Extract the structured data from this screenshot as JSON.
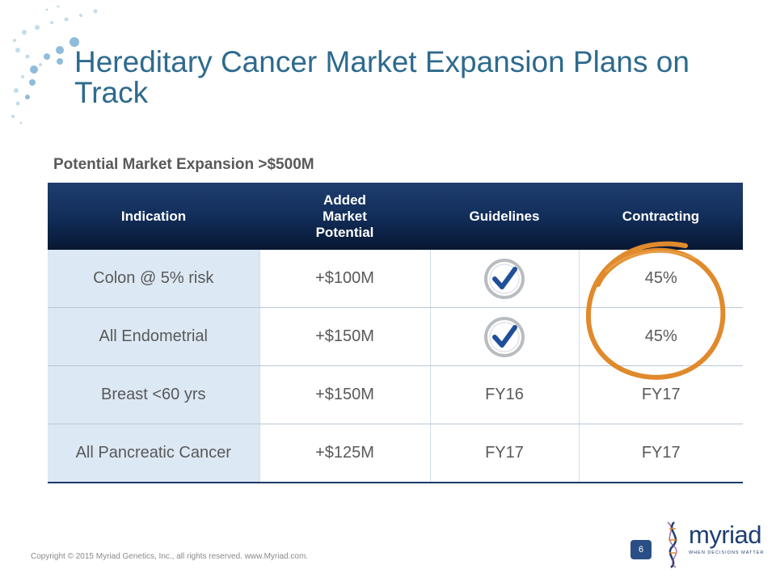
{
  "slide": {
    "title": "Hereditary Cancer Market Expansion Plans on Track",
    "subtitle": "Potential Market Expansion >$500M",
    "page_number": "6",
    "copyright": "Copyright © 2015 Myriad Genetics, Inc., all rights reserved.  www.Myriad.com.",
    "logo": {
      "word": "myriad",
      "tagline": "WHEN DECISIONS MATTER"
    }
  },
  "table": {
    "headers": [
      "Indication",
      "Added Market Potential",
      "Guidelines",
      "Contracting"
    ],
    "rows": [
      {
        "indication": "Colon @ 5% risk",
        "potential": "+$100M",
        "guidelines": "",
        "guidelines_check": true,
        "contracting": "45%"
      },
      {
        "indication": "All Endometrial",
        "potential": "+$150M",
        "guidelines": "",
        "guidelines_check": true,
        "contracting": "45%"
      },
      {
        "indication": "Breast <60 yrs",
        "potential": "+$150M",
        "guidelines": "FY16",
        "guidelines_check": false,
        "contracting": "FY17"
      },
      {
        "indication": "All Pancreatic Cancer",
        "potential": "+$125M",
        "guidelines": "FY17",
        "guidelines_check": false,
        "contracting": "FY17"
      }
    ]
  },
  "icons": {
    "check": "checkmark-badge-icon",
    "highlight": "orange-circle-highlight"
  },
  "colors": {
    "title": "#2e6a8e",
    "header_bg": "#13305d",
    "first_col_bg": "#dce8f3",
    "check_blue": "#1f4f99",
    "highlight_orange": "#e08a2c",
    "logo_navy": "#1f3f72"
  }
}
